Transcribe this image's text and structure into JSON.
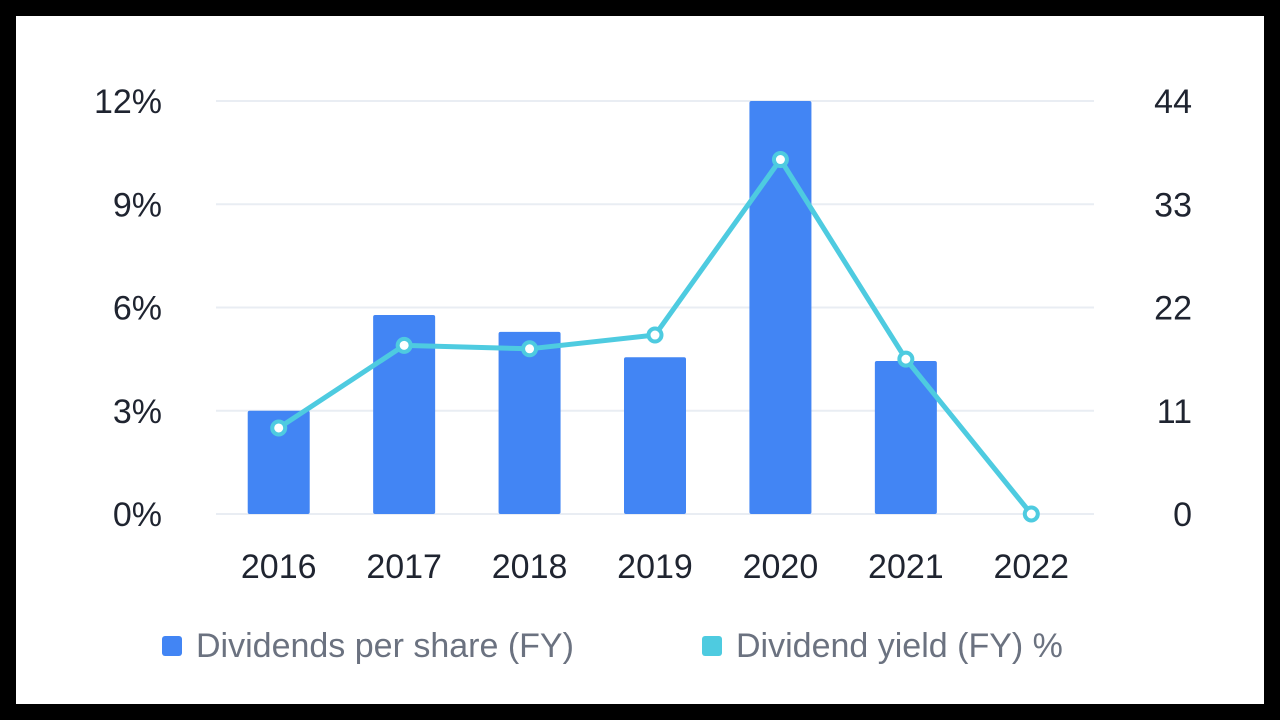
{
  "chart_data": {
    "type": "bar",
    "categories": [
      "2016",
      "2017",
      "2018",
      "2019",
      "2020",
      "2021",
      "2022"
    ],
    "series": [
      {
        "name": "Dividends per share (FY)",
        "type": "bar",
        "axis": "right",
        "color": "#4285f4",
        "values": [
          11,
          21.2,
          19.4,
          16.7,
          44,
          16.3,
          null
        ]
      },
      {
        "name": "Dividend yield (FY) %",
        "type": "line",
        "axis": "left",
        "color": "#4ecbe0",
        "values": [
          2.5,
          4.9,
          4.8,
          5.2,
          10.3,
          4.5,
          0
        ]
      }
    ],
    "y_left": {
      "ticks": [
        "0%",
        "3%",
        "6%",
        "9%",
        "12%"
      ],
      "lim": [
        0,
        12
      ]
    },
    "y_right": {
      "ticks": [
        "0",
        "11",
        "22",
        "33",
        "44"
      ],
      "lim": [
        0,
        44
      ]
    },
    "grid": true,
    "legend": "bottom"
  }
}
